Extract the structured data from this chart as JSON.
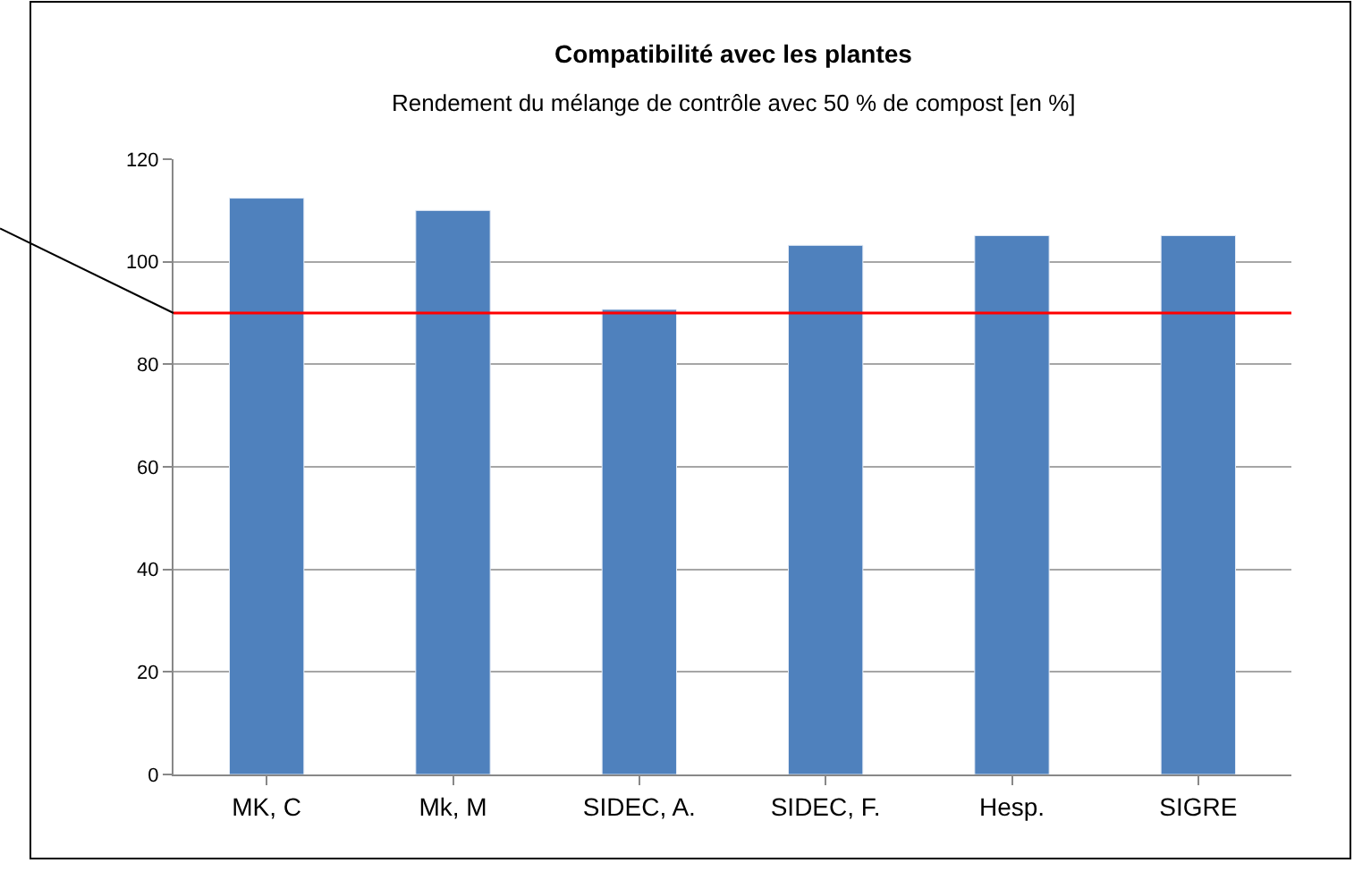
{
  "chart_data": {
    "type": "bar",
    "title": "Compatibilité avec les plantes",
    "subtitle": "Rendement du mélange de contrôle avec 50 % de compost [en %]",
    "categories": [
      "MK, C",
      "Mk, M",
      "SIDEC, A.",
      "SIDEC, F.",
      "Hesp.",
      "SIGRE"
    ],
    "values": [
      112.4,
      110,
      90.7,
      103.2,
      105.1,
      105.1
    ],
    "color": "#4f81bd",
    "ylim": [
      0,
      120
    ],
    "yticks": [
      0,
      20,
      40,
      60,
      80,
      100,
      120
    ],
    "grid": "y",
    "ref_lines": [
      {
        "axis": "y",
        "value": 90,
        "color": "#ff0000"
      }
    ]
  }
}
